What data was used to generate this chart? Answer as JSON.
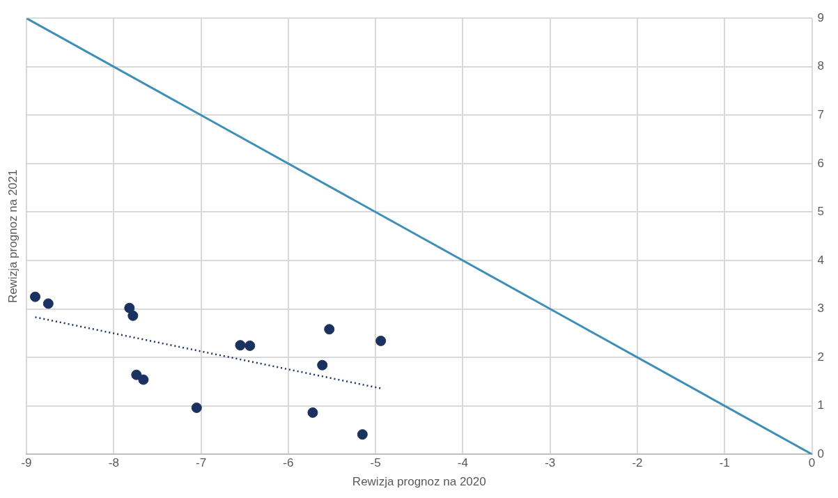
{
  "chart_data": {
    "type": "scatter",
    "xlabel": "Rewizja prognoz na 2020",
    "ylabel": "Rewizja prognoz na 2021",
    "xlim": [
      -9,
      0
    ],
    "xticks": [
      -9,
      -8,
      -7,
      -6,
      -5,
      -4,
      -3,
      -2,
      -1,
      0
    ],
    "ylim": [
      0,
      9
    ],
    "yticks": [
      0,
      1,
      2,
      3,
      4,
      5,
      6,
      7,
      8,
      9
    ],
    "grid": true,
    "legend": false,
    "marker": "circle",
    "series": [
      {
        "type": "line",
        "color": "#3d8fb8",
        "line_style": "solid",
        "marker": "none",
        "x": [
          -9,
          0
        ],
        "values": [
          9,
          0
        ]
      },
      {
        "color": "#1b3160",
        "x": [
          -8.9,
          -8.75,
          -7.82,
          -7.78,
          -7.74,
          -7.66,
          -7.05,
          -6.55,
          -6.44,
          -5.53,
          -5.61,
          -5.72,
          -4.94,
          -5.15
        ],
        "values": [
          3.25,
          3.11,
          3.02,
          2.86,
          1.64,
          1.54,
          0.96,
          2.25,
          2.24,
          2.58,
          1.84,
          0.86,
          2.34,
          0.41
        ]
      },
      {
        "type": "line",
        "color": "#1b3160",
        "line_style": "dotted",
        "marker": "none",
        "x": [
          -8.9,
          -4.94
        ],
        "values": [
          2.83,
          1.36
        ]
      }
    ]
  }
}
